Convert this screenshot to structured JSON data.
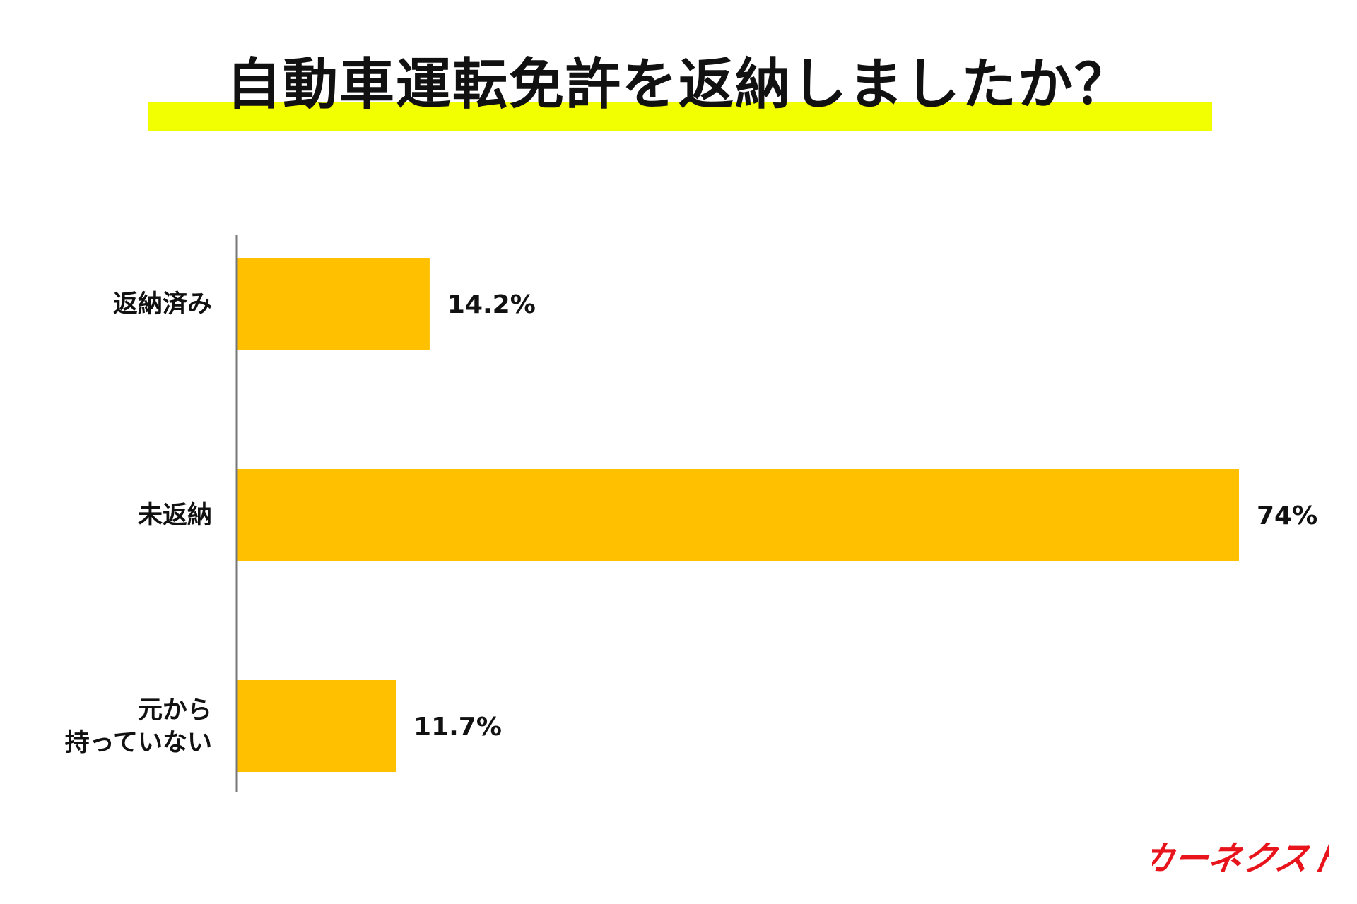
{
  "title": "自動車運転免許を返納しましたか？",
  "colors": {
    "bar": "#ffc000",
    "highlight": "#f2ff00",
    "axis": "#777777",
    "text": "#111111",
    "logo": "#e8141c"
  },
  "chart_data": {
    "type": "bar",
    "orientation": "horizontal",
    "title": "自動車運転免許を返納しましたか？",
    "categories": [
      [
        "返納済み"
      ],
      [
        "未返納"
      ],
      [
        "元から",
        "持っていない"
      ]
    ],
    "values": [
      14.2,
      74,
      11.7
    ],
    "value_labels": [
      "14.2%",
      "74%",
      "11.7%"
    ],
    "unit": "%",
    "xlim": [
      0,
      74
    ],
    "grid": false,
    "legend": "none"
  },
  "brand": {
    "logo_text": "カーネクスト"
  }
}
